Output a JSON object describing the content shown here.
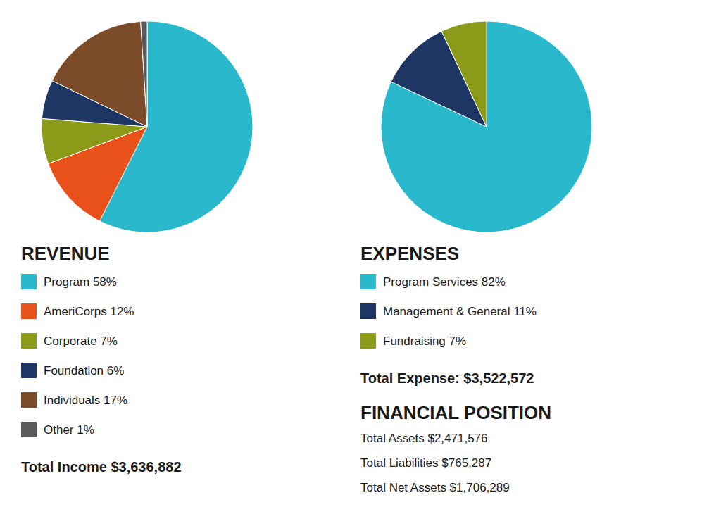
{
  "chart_data": [
    {
      "type": "pie",
      "title": "REVENUE",
      "categories": [
        "Program 58%",
        "AmeriCorps 12%",
        "Corporate 7%",
        "Foundation 6%",
        "Individuals 17%",
        "Other 1%"
      ],
      "values": [
        58,
        12,
        7,
        6,
        17,
        1
      ],
      "colors": [
        "#29B8CC",
        "#E8521A",
        "#8C9A1A",
        "#1E3664",
        "#7B4B2A",
        "#5A5A5A"
      ],
      "legend": "bottom",
      "annotations": [
        "Total Income $3,636,882"
      ]
    },
    {
      "type": "pie",
      "title": "EXPENSES",
      "categories": [
        "Program Services 82%",
        "Management & General 11%",
        "Fundraising 7%"
      ],
      "values": [
        82,
        11,
        7
      ],
      "colors": [
        "#29B8CC",
        "#1E3664",
        "#8C9A1A"
      ],
      "legend": "bottom",
      "annotations": [
        "Total Expense: $3,522,572"
      ]
    },
    {
      "type": "text",
      "title": "FINANCIAL POSITION",
      "annotations": [
        "Total Assets $2,471,576",
        "Total Liabilities $765,287",
        "Total Net Assets $1,706,289"
      ]
    }
  ]
}
